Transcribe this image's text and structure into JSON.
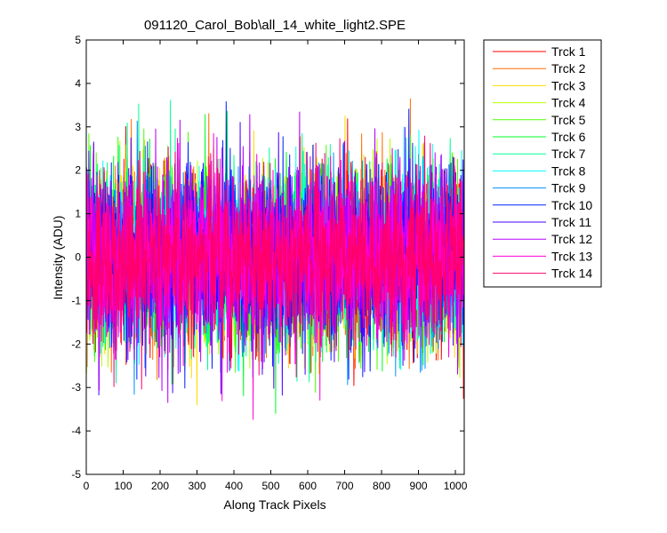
{
  "chart_data": {
    "type": "line",
    "title": "091120_Carol_Bob\\all_14_white_light2.SPE",
    "xlabel": "Along Track Pixels",
    "ylabel": "Intensity (ADU)",
    "xlim": [
      0,
      1024
    ],
    "ylim": [
      -5,
      5
    ],
    "xticks": [
      "0",
      "100",
      "200",
      "300",
      "400",
      "500",
      "600",
      "700",
      "800",
      "900",
      "1000"
    ],
    "yticks": [
      "-5",
      "-4",
      "-3",
      "-2",
      "-1",
      "0",
      "1",
      "2",
      "3",
      "4",
      "5"
    ],
    "grid": false,
    "legend_position": "outside-top-right",
    "points_per_series": 1024,
    "noise_std": 1.0,
    "series": [
      {
        "name": "Trck 1",
        "color": "#ff0000"
      },
      {
        "name": "Trck 2",
        "color": "#ff6e00"
      },
      {
        "name": "Trck 3",
        "color": "#ffdb00"
      },
      {
        "name": "Trck 4",
        "color": "#b6ff00"
      },
      {
        "name": "Trck 5",
        "color": "#49ff00"
      },
      {
        "name": "Trck 6",
        "color": "#00ff25"
      },
      {
        "name": "Trck 7",
        "color": "#00ff92"
      },
      {
        "name": "Trck 8",
        "color": "#00ffff"
      },
      {
        "name": "Trck 9",
        "color": "#0092ff"
      },
      {
        "name": "Trck 10",
        "color": "#0025ff"
      },
      {
        "name": "Trck 11",
        "color": "#4900ff"
      },
      {
        "name": "Trck 12",
        "color": "#b600ff"
      },
      {
        "name": "Trck 13",
        "color": "#ff00db"
      },
      {
        "name": "Trck 14",
        "color": "#ff006e"
      }
    ]
  }
}
